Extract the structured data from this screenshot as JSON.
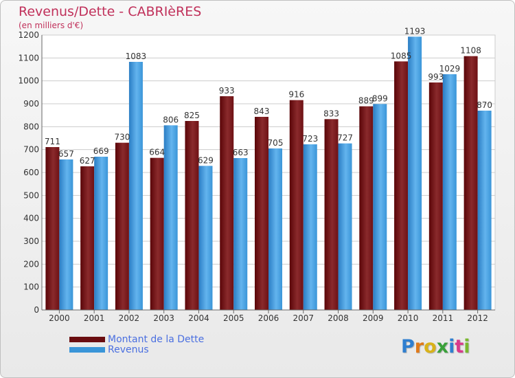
{
  "header": {
    "title": "Revenus/Dette - CABRIèRES",
    "subtitle": "(en milliers d'€)"
  },
  "legend": [
    {
      "label": "Montant de la Dette",
      "color": "#6a0d10"
    },
    {
      "label": "Revenus",
      "color": "#3a95d8"
    }
  ],
  "logo": {
    "letters": [
      "P",
      "r",
      "o",
      "x",
      "i",
      "t",
      "i"
    ],
    "colors": [
      "#2f7fd0",
      "#e07a1a",
      "#d9b21a",
      "#3aa13a",
      "#2f7fd0",
      "#d93a8a",
      "#7ab82f"
    ]
  },
  "chart_data": {
    "type": "bar",
    "title": "Revenus/Dette - CABRIèRES",
    "ylabel": "(en milliers d'€)",
    "categories": [
      "2000",
      "2001",
      "2002",
      "2003",
      "2004",
      "2005",
      "2006",
      "2007",
      "2008",
      "2009",
      "2010",
      "2011",
      "2012"
    ],
    "series": [
      {
        "name": "Montant de la Dette",
        "values": [
          711,
          627,
          730,
          664,
          825,
          933,
          843,
          916,
          833,
          889,
          1085,
          993,
          1108
        ]
      },
      {
        "name": "Revenus",
        "values": [
          657,
          669,
          1083,
          806,
          629,
          663,
          705,
          723,
          727,
          899,
          1193,
          1029,
          870
        ]
      }
    ],
    "yticks": [
      "0",
      "100",
      "200",
      "300",
      "400",
      "500",
      "600",
      "700",
      "800",
      "900",
      "1000",
      "1100",
      "1200"
    ],
    "ylim": [
      0,
      1200
    ],
    "grid": true,
    "legend_position": "bottom-left"
  }
}
